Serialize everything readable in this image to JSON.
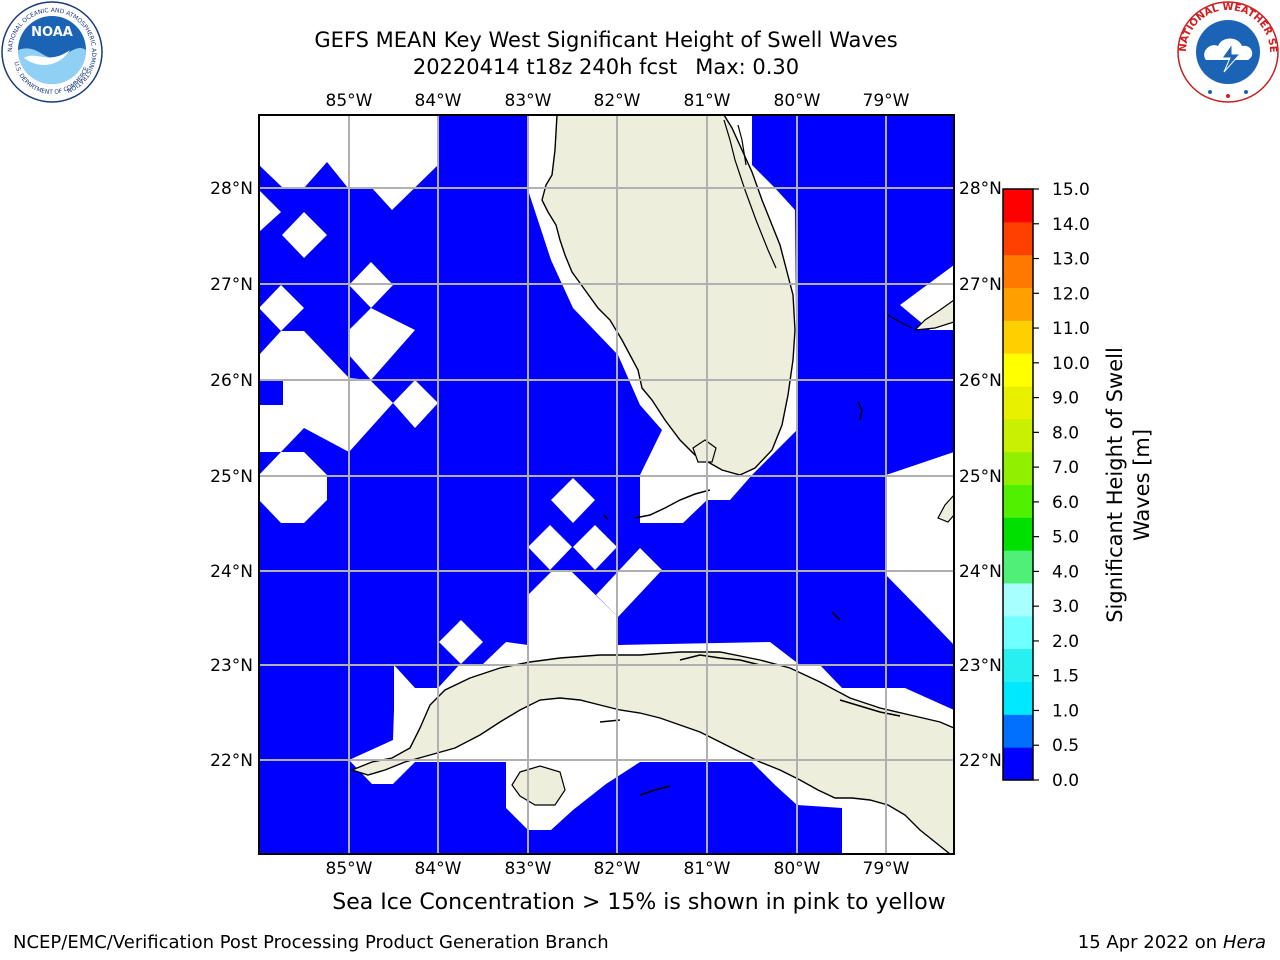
{
  "header": {
    "title_line1": "GEFS MEAN Key West Significant Height of Swell Waves",
    "title_line2": "20220414 t18z 240h fcst",
    "max_label": "Max: 0.30"
  },
  "logos": {
    "left": {
      "icon": "noaa-logo",
      "ring_text": "NATIONAL OCEANIC AND ATMOSPHERIC ADMINISTRATION",
      "bottom_text": "U.S. DEPARTMENT OF COMMERCE",
      "center_text": "NOAA"
    },
    "right": {
      "icon": "nws-logo",
      "ring_text": "NATIONAL WEATHER SERVICE"
    }
  },
  "map": {
    "lon_labels": [
      "85°W",
      "84°W",
      "83°W",
      "82°W",
      "81°W",
      "80°W",
      "79°W"
    ],
    "lat_labels": [
      "28°N",
      "27°N",
      "26°N",
      "25°N",
      "24°N",
      "23°N",
      "22°N"
    ],
    "water_color": "#0000ff",
    "land_color": "#eeeedc",
    "nodata_color": "#ffffff",
    "grid_color": "#b0b0b0"
  },
  "colorbar": {
    "title_line1": "Significant Height of Swell",
    "title_line2": "Waves [m]",
    "tick_labels": [
      "0.0",
      "0.5",
      "1.0",
      "1.5",
      "2.0",
      "3.0",
      "4.0",
      "5.0",
      "6.0",
      "7.0",
      "8.0",
      "9.0",
      "10.0",
      "11.0",
      "12.0",
      "13.0",
      "14.0",
      "15.0"
    ],
    "colors": [
      "#0000ff",
      "#0070ff",
      "#00e8ff",
      "#28f0f0",
      "#70ffff",
      "#a8ffff",
      "#50f078",
      "#00e000",
      "#50f000",
      "#90f000",
      "#c8f000",
      "#e8f000",
      "#ffff00",
      "#ffd000",
      "#ffa000",
      "#ff7800",
      "#ff4000",
      "#ff0000"
    ]
  },
  "notes": {
    "sea_ice": "Sea Ice Concentration > 15% is shown in pink to yellow"
  },
  "footer": {
    "left": "NCEP/EMC/Verification Post Processing Product Generation Branch",
    "date": "15 Apr 2022 on ",
    "machine": "Hera"
  }
}
